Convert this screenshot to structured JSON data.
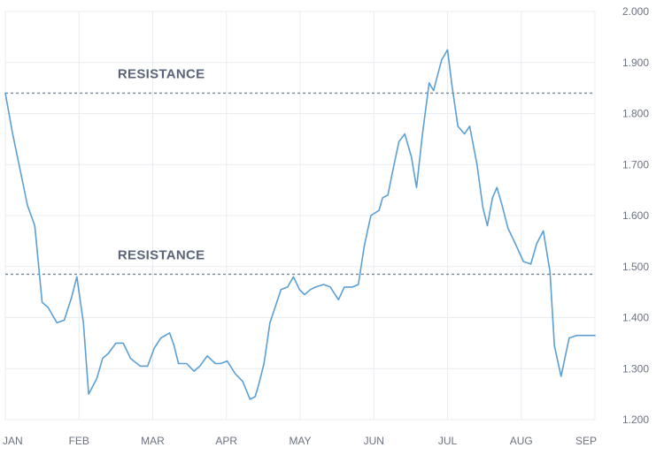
{
  "chart_data": {
    "type": "line",
    "title": "",
    "xlabel": "",
    "ylabel": "",
    "x_tick_labels": [
      "JAN",
      "FEB",
      "MAR",
      "APR",
      "MAY",
      "JUN",
      "JUL",
      "AUG",
      "SEP"
    ],
    "y_tick_labels": [
      "1.200",
      "1.300",
      "1.400",
      "1.500",
      "1.600",
      "1.700",
      "1.800",
      "1.900",
      "2.000"
    ],
    "ylim": [
      1.2,
      2.0
    ],
    "xlim": [
      0,
      8
    ],
    "grid": true,
    "colors": {
      "line": "#5b9fd4",
      "grid": "#e8ecf0",
      "resistance": "#7a8596",
      "annotation": "#5a6577",
      "tick": "#6b7280"
    },
    "annotations": [
      {
        "text": "RESISTANCE",
        "y": 1.84,
        "label_x": 1.2
      },
      {
        "text": "RESISTANCE",
        "y": 1.485,
        "label_x": 1.2
      }
    ],
    "series": [
      {
        "x": [
          0,
          0.1,
          0.2,
          0.3,
          0.4,
          0.5,
          0.58,
          0.7,
          0.8,
          0.9,
          0.97,
          1.06,
          1.13,
          1.24,
          1.32,
          1.4,
          1.5,
          1.6,
          1.7,
          1.83,
          1.93,
          2.02,
          2.11,
          2.23,
          2.29,
          2.35,
          2.46,
          2.56,
          2.64,
          2.74,
          2.85,
          2.92,
          3.01,
          3.12,
          3.22,
          3.32,
          3.39,
          3.44,
          3.51,
          3.59,
          3.66,
          3.74,
          3.83,
          3.91,
          3.99,
          4.06,
          4.14,
          4.21,
          4.32,
          4.41,
          4.52,
          4.6,
          4.71,
          4.79,
          4.87,
          4.96,
          5.07,
          5.12,
          5.19,
          5.26,
          5.34,
          5.42,
          5.51,
          5.58,
          5.66,
          5.75,
          5.81,
          5.92,
          6.0,
          6.06,
          6.14,
          6.23,
          6.3,
          6.4,
          6.48,
          6.54,
          6.61,
          6.67,
          6.74,
          6.82,
          6.92,
          7.03,
          7.13,
          7.21,
          7.3,
          7.39,
          7.45,
          7.54,
          7.65,
          7.75,
          7.84,
          7.9,
          7.98,
          8.0
        ],
        "values": [
          1.84,
          1.76,
          1.69,
          1.62,
          1.58,
          1.43,
          1.42,
          1.39,
          1.395,
          1.44,
          1.48,
          1.39,
          1.25,
          1.28,
          1.32,
          1.33,
          1.35,
          1.35,
          1.32,
          1.305,
          1.305,
          1.34,
          1.36,
          1.37,
          1.345,
          1.31,
          1.31,
          1.295,
          1.305,
          1.325,
          1.31,
          1.31,
          1.315,
          1.29,
          1.275,
          1.24,
          1.245,
          1.27,
          1.31,
          1.39,
          1.42,
          1.455,
          1.46,
          1.48,
          1.455,
          1.445,
          1.455,
          1.46,
          1.465,
          1.46,
          1.435,
          1.46,
          1.46,
          1.465,
          1.54,
          1.6,
          1.61,
          1.635,
          1.64,
          1.69,
          1.745,
          1.76,
          1.715,
          1.655,
          1.76,
          1.86,
          1.845,
          1.905,
          1.925,
          1.855,
          1.775,
          1.76,
          1.775,
          1.7,
          1.615,
          1.58,
          1.635,
          1.655,
          1.62,
          1.575,
          1.545,
          1.51,
          1.505,
          1.545,
          1.57,
          1.49,
          1.345,
          1.285,
          1.36,
          1.365,
          1.365,
          1.365,
          1.365,
          1.365
        ]
      }
    ]
  }
}
